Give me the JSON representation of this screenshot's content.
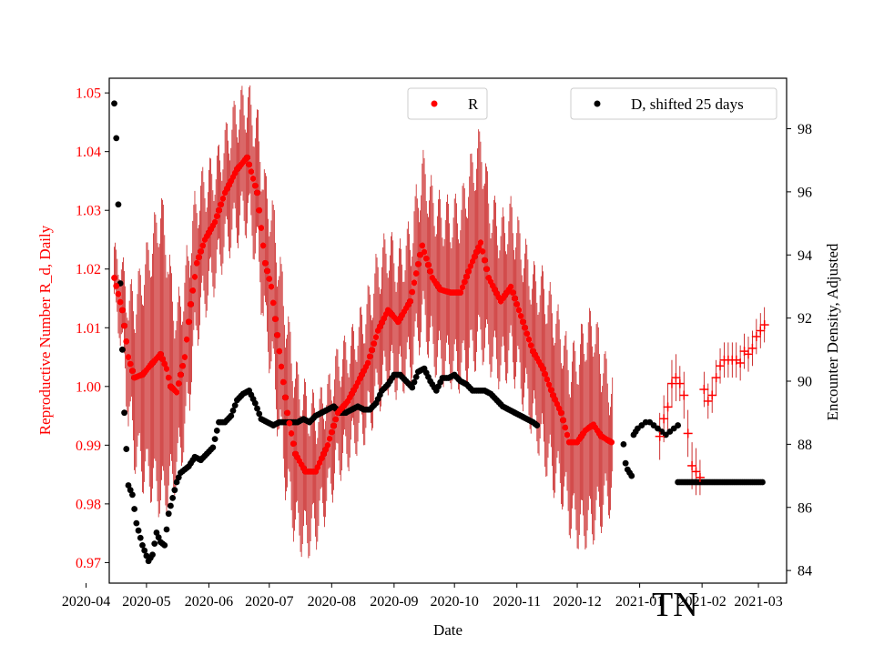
{
  "chart_data": {
    "type": "scatter",
    "xlabel": "Date",
    "ylabel_left": "Reproductive Number R_d, Daily",
    "ylabel_right": "Encounter Density, Adjusted",
    "annotation": "TN",
    "x_ticks": [
      "2020-04",
      "2020-05",
      "2020-06",
      "2020-07",
      "2020-08",
      "2020-09",
      "2020-10",
      "2020-11",
      "2020-12",
      "2021-01",
      "2021-02",
      "2021-03"
    ],
    "y_left_ticks": [
      "0.97",
      "0.98",
      "0.99",
      "1.00",
      "1.01",
      "1.02",
      "1.03",
      "1.04",
      "1.05"
    ],
    "y_right_ticks": [
      "84",
      "86",
      "88",
      "90",
      "92",
      "94",
      "96",
      "98"
    ],
    "ylim_left": [
      0.9665,
      1.0525
    ],
    "ylim_right": [
      83.6,
      99.6
    ],
    "xlim_days": [
      -2.5,
      334
    ],
    "legend": [
      {
        "label": "R",
        "color": "#ff0000",
        "position": "top-center"
      },
      {
        "label": "D, shifted 25 days",
        "color": "#000000",
        "position": "top-right"
      }
    ],
    "colors": {
      "R": "#ff0000",
      "R_errorbar": "#c00000",
      "D": "#000000",
      "left_axis": "#ff0000"
    },
    "series": [
      {
        "name": "R",
        "axis": "left",
        "date_start": "2020-04-15",
        "knots_days": [
          0,
          4,
          7,
          10,
          14,
          19,
          23,
          26,
          28,
          31,
          35,
          38,
          41,
          45,
          50,
          55,
          61,
          66,
          71,
          75,
          78,
          82,
          86,
          90,
          95,
          100,
          106,
          111,
          116,
          120,
          126,
          131,
          136,
          141,
          147,
          153,
          158,
          162,
          167,
          172,
          177,
          182,
          186,
          192,
          197,
          202,
          208,
          213,
          218,
          222,
          226,
          230,
          234,
          238,
          242,
          247
        ],
        "knots_R": [
          1.0185,
          1.013,
          1.005,
          1.0015,
          1.002,
          1.004,
          1.0055,
          1.003,
          1.0,
          0.999,
          1.005,
          1.014,
          1.021,
          1.025,
          1.028,
          1.033,
          1.037,
          1.039,
          1.033,
          1.021,
          1.017,
          1.006,
          0.9955,
          0.9885,
          0.9855,
          0.9855,
          0.99,
          0.9955,
          0.9975,
          1.0,
          1.004,
          1.0095,
          1.013,
          1.011,
          1.0145,
          1.024,
          1.0185,
          1.0165,
          1.016,
          1.016,
          1.0205,
          1.0245,
          1.0185,
          1.0145,
          1.017,
          1.012,
          1.006,
          1.003,
          0.9985,
          0.9955,
          0.9905,
          0.9905,
          0.9925,
          0.9935,
          0.9915,
          0.9905
        ],
        "knots_err": [
          0.004,
          0.006,
          0.009,
          0.012,
          0.016,
          0.02,
          0.024,
          0.02,
          0.016,
          0.012,
          0.012,
          0.011,
          0.01,
          0.009,
          0.008,
          0.008,
          0.009,
          0.009,
          0.01,
          0.011,
          0.012,
          0.013,
          0.013,
          0.012,
          0.011,
          0.009,
          0.008,
          0.008,
          0.008,
          0.008,
          0.009,
          0.01,
          0.01,
          0.009,
          0.01,
          0.012,
          0.012,
          0.012,
          0.012,
          0.013,
          0.015,
          0.016,
          0.012,
          0.011,
          0.011,
          0.011,
          0.011,
          0.013,
          0.013,
          0.012,
          0.012,
          0.014,
          0.016,
          0.016,
          0.012,
          0.008
        ],
        "wiggle_amp": 0.0045
      },
      {
        "name": "R_late",
        "axis": "left",
        "marker": "+",
        "date_start": "2021-01-09",
        "points_days": [
          271,
          273,
          275,
          277,
          279,
          281,
          283,
          285,
          287,
          289,
          291,
          293,
          295,
          297,
          299,
          301,
          303,
          305,
          307,
          309,
          311,
          313,
          315,
          317,
          319,
          321,
          323
        ],
        "points_R": [
          0.9915,
          0.9945,
          0.9965,
          1.0005,
          1.0015,
          1.0005,
          0.9985,
          0.992,
          0.9865,
          0.9855,
          0.9845,
          0.9995,
          0.9975,
          0.9985,
          1.0015,
          1.0035,
          1.0045,
          1.0045,
          1.0045,
          1.0045,
          1.004,
          1.006,
          1.0055,
          1.0065,
          1.0085,
          1.0095,
          1.0105
        ],
        "points_err": [
          0.004,
          0.004,
          0.004,
          0.004,
          0.004,
          0.003,
          0.004,
          0.004,
          0.004,
          0.004,
          0.003,
          0.003,
          0.003,
          0.003,
          0.003,
          0.003,
          0.003,
          0.003,
          0.003,
          0.003,
          0.003,
          0.003,
          0.003,
          0.003,
          0.003,
          0.003,
          0.003
        ]
      },
      {
        "name": "D, shifted 25 days",
        "axis": "right",
        "date_start": "2020-04-15",
        "knots_days": [
          0,
          1,
          2,
          3,
          4,
          5,
          7,
          9,
          11,
          14,
          17,
          19,
          21,
          23,
          25,
          27,
          29,
          31,
          33,
          35,
          37,
          40,
          43,
          46,
          49,
          52,
          55,
          58,
          61,
          64,
          67,
          70,
          73,
          76,
          79,
          82,
          85,
          88,
          91,
          94,
          97,
          100,
          103,
          106,
          109,
          112,
          115,
          118,
          121,
          124,
          127,
          130,
          133,
          136,
          139,
          142,
          145,
          148,
          151,
          154,
          157,
          160,
          163,
          166,
          169,
          172,
          175,
          178,
          181,
          184,
          187,
          190,
          193,
          196,
          199,
          202,
          205,
          208,
          210
        ],
        "knots_D": [
          98.8,
          97.7,
          95.6,
          93.1,
          91.0,
          89.0,
          86.7,
          86.4,
          85.5,
          84.8,
          84.3,
          84.5,
          85.2,
          84.9,
          84.8,
          85.8,
          86.3,
          86.8,
          87.1,
          87.2,
          87.3,
          87.6,
          87.5,
          87.7,
          87.9,
          88.7,
          88.7,
          88.9,
          89.4,
          89.6,
          89.7,
          89.3,
          88.8,
          88.7,
          88.6,
          88.7,
          88.7,
          88.7,
          88.7,
          88.8,
          88.7,
          88.9,
          89.0,
          89.1,
          89.2,
          89.0,
          89.0,
          89.1,
          89.2,
          89.1,
          89.1,
          89.3,
          89.7,
          89.9,
          90.2,
          90.2,
          90.0,
          89.8,
          90.3,
          90.4,
          90.0,
          89.7,
          90.1,
          90.1,
          90.2,
          90.0,
          89.9,
          89.7,
          89.7,
          89.7,
          89.6,
          89.4,
          89.2,
          89.1,
          89.0,
          88.9,
          88.8,
          88.7,
          88.6
        ],
        "late_days": [
          253,
          254,
          255,
          256,
          257,
          258,
          259,
          260,
          262,
          264,
          266,
          268,
          270,
          272,
          274,
          276,
          278,
          280
        ],
        "late_D": [
          88.0,
          87.4,
          87.2,
          87.1,
          87.0,
          88.3,
          88.4,
          88.5,
          88.6,
          88.7,
          88.7,
          88.6,
          88.5,
          88.4,
          88.3,
          88.4,
          88.5,
          88.6
        ],
        "flat_start_day": 280,
        "flat_end_day": 322,
        "flat_D": 86.8
      }
    ]
  }
}
